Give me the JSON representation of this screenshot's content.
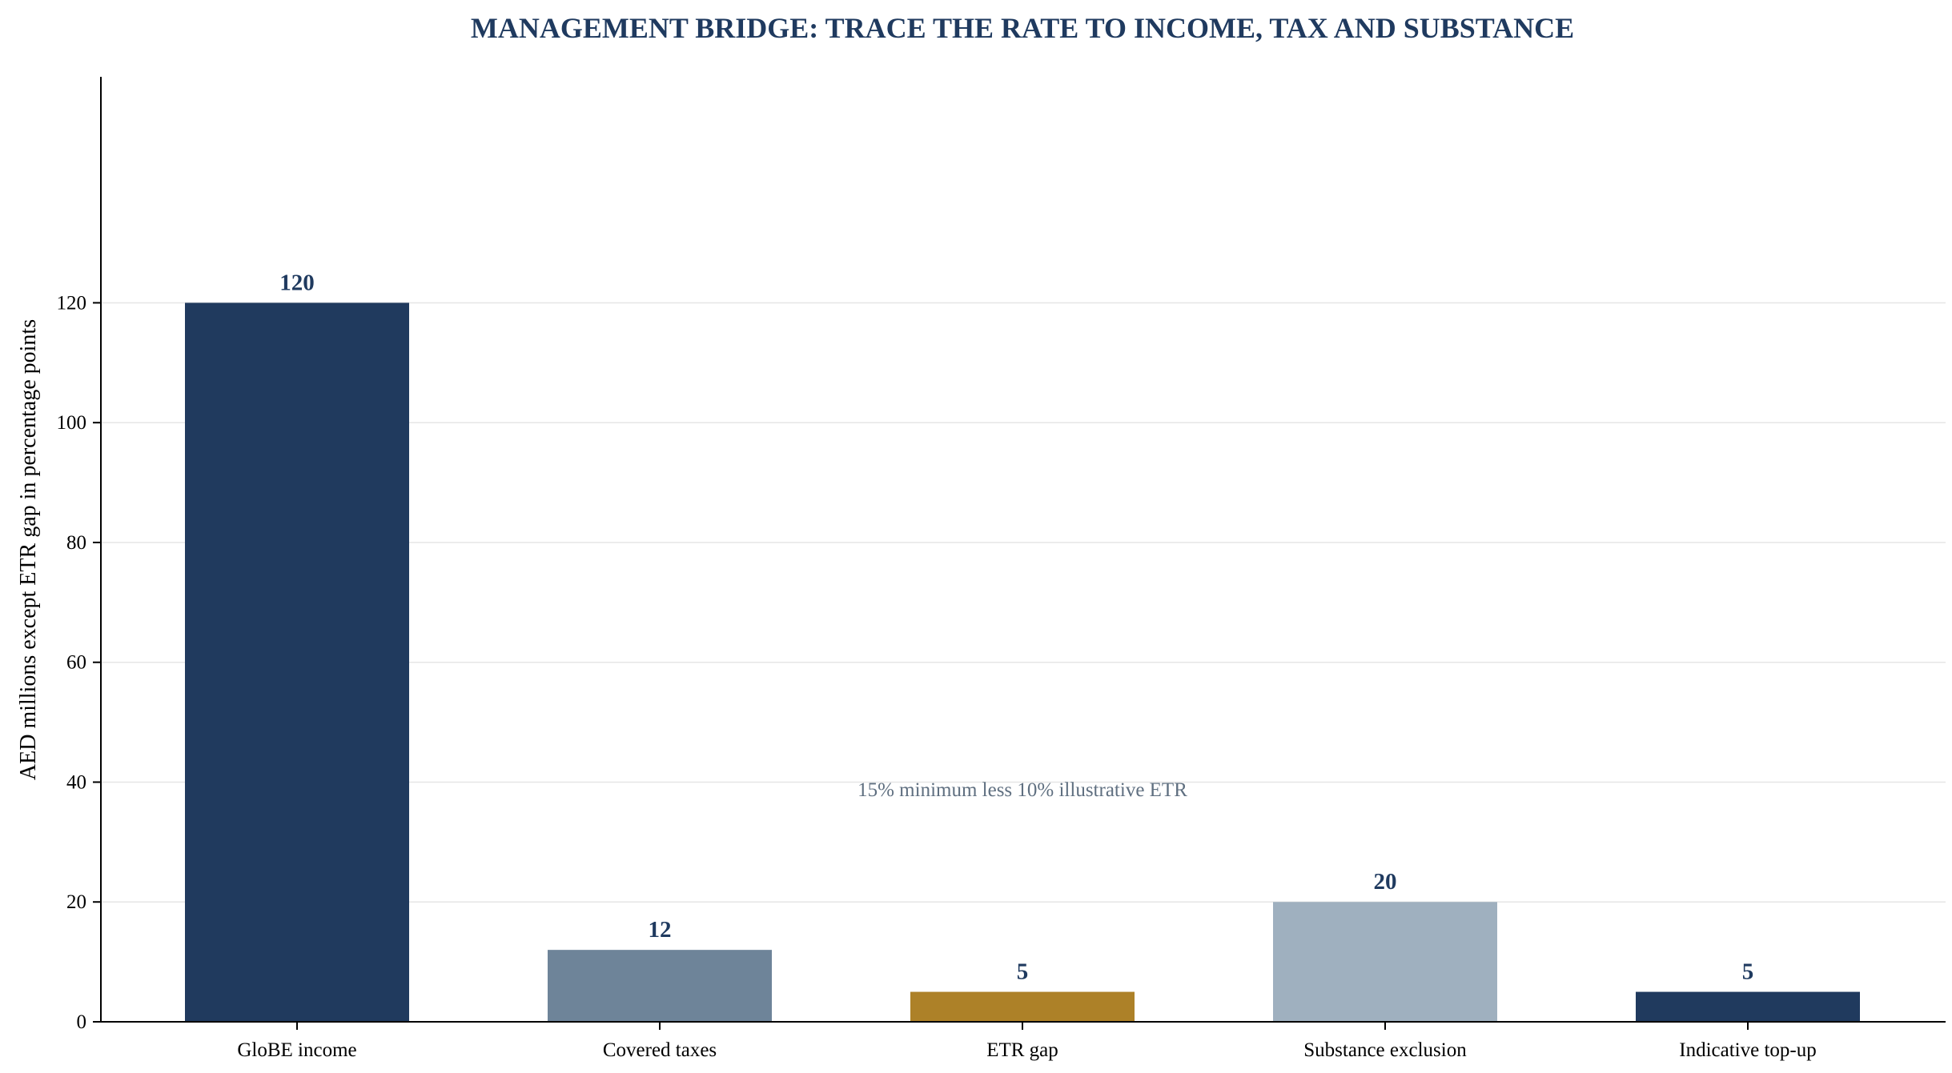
{
  "chart_data": {
    "type": "bar",
    "title": "MANAGEMENT BRIDGE: TRACE THE RATE TO INCOME, TAX AND SUBSTANCE",
    "xlabel": "",
    "ylabel": "AED millions except ETR gap in percentage points",
    "categories": [
      "GloBE income",
      "Covered taxes",
      "ETR gap",
      "Substance exclusion",
      "Indicative top-up"
    ],
    "values": [
      120,
      12,
      5,
      20,
      5
    ],
    "value_labels": [
      "120",
      "12",
      "5",
      "20",
      "5"
    ],
    "colors": [
      "#203a5e",
      "#6e8499",
      "#ad8128",
      "#9fb0bf",
      "#203a5e"
    ],
    "ylim": [
      0,
      126
    ],
    "yticks": [
      0,
      20,
      40,
      60,
      80,
      100,
      120
    ],
    "grid": true,
    "annotation": "15% minimum less 10% illustrative ETR"
  }
}
